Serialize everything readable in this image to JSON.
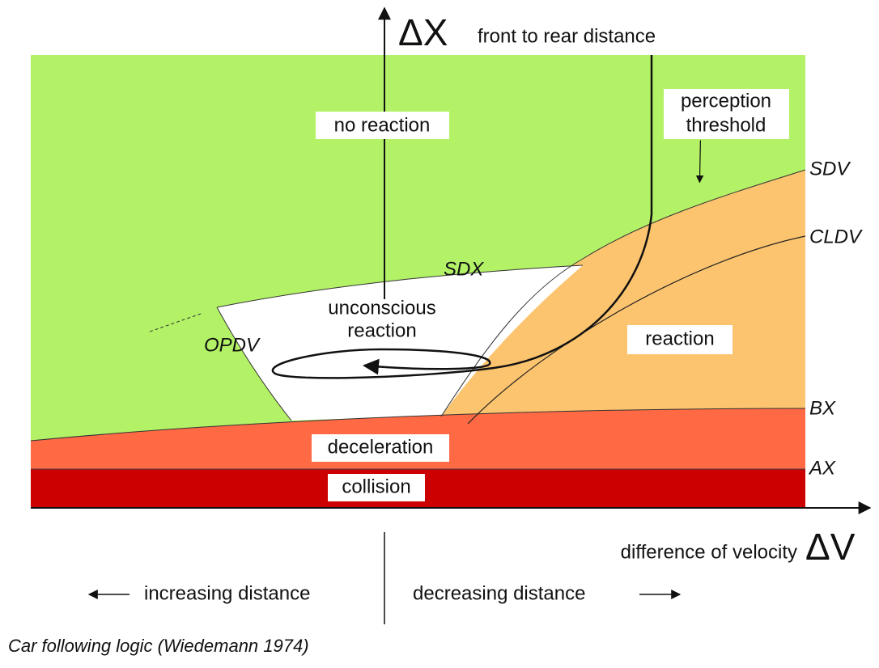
{
  "axes": {
    "y_symbol": "ΔX",
    "y_label": "front to rear distance",
    "x_symbol": "ΔV",
    "x_label": "difference of velocity"
  },
  "regions": {
    "no_reaction": "no reaction",
    "unconscious_reaction": [
      "unconscious",
      "reaction"
    ],
    "reaction": "reaction",
    "deceleration": "deceleration",
    "collision": "collision"
  },
  "perception_threshold": [
    "perception",
    "threshold"
  ],
  "thresholds": {
    "SDV": "SDV",
    "CLDV": "CLDV",
    "SDX": "SDX",
    "OPDV": "OPDV",
    "BX": "BX",
    "AX": "AX"
  },
  "directions": {
    "left": "increasing distance",
    "right": "decreasing distance"
  },
  "caption": "Car following logic (Wiedemann 1974)"
}
